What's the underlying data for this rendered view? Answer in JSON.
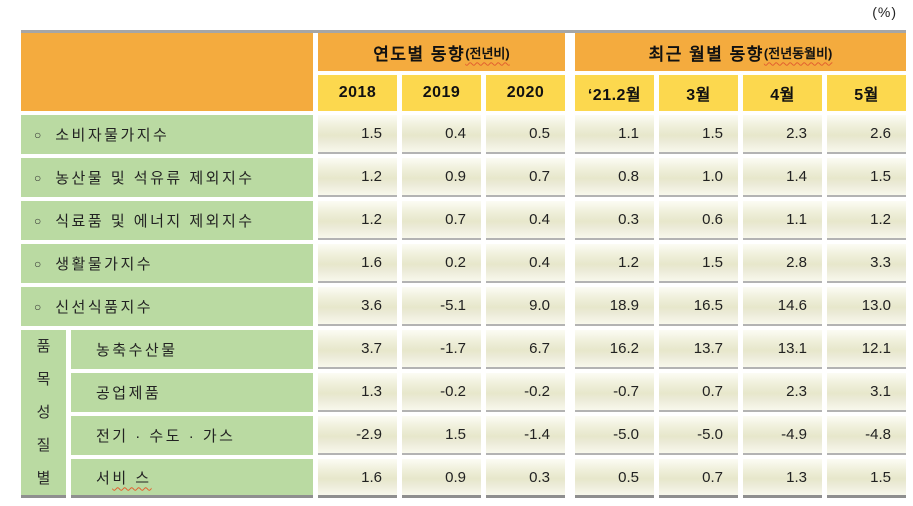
{
  "unit_label": "(%)",
  "marker": "○",
  "colors": {
    "header_orange": "#f4ab3e",
    "header_yellow": "#fcd84e",
    "label_green": "#badaa2",
    "cell_cream": "#e7e7cb",
    "border_gray": "#a6a6a6",
    "underline_red": "#e2602f"
  },
  "header": {
    "group_yearly": {
      "title": "연도별 동향",
      "suffix": "(전년비)"
    },
    "group_monthly": {
      "title": "최근 월별 동향",
      "suffix": "(전년동월비)"
    },
    "columns": [
      "2018",
      "2019",
      "2020",
      "‘21.2월",
      "3월",
      "4월",
      "5월"
    ]
  },
  "main_rows": [
    {
      "label": "소비자물가지수",
      "values": [
        "1.5",
        "0.4",
        "0.5",
        "1.1",
        "1.5",
        "2.3",
        "2.6"
      ]
    },
    {
      "label": "농산물 및 석유류 제외지수",
      "values": [
        "1.2",
        "0.9",
        "0.7",
        "0.8",
        "1.0",
        "1.4",
        "1.5"
      ]
    },
    {
      "label": "식료품 및 에너지 제외지수",
      "values": [
        "1.2",
        "0.7",
        "0.4",
        "0.3",
        "0.6",
        "1.1",
        "1.2"
      ]
    },
    {
      "label": "생활물가지수",
      "values": [
        "1.6",
        "0.2",
        "0.4",
        "1.2",
        "1.5",
        "2.8",
        "3.3"
      ]
    },
    {
      "label": "신선식품지수",
      "values": [
        "3.6",
        "-5.1",
        "9.0",
        "18.9",
        "16.5",
        "14.6",
        "13.0"
      ]
    }
  ],
  "section": {
    "vertical_label": "품목성질별",
    "rows": [
      {
        "label": "농축수산물",
        "values": [
          "3.7",
          "-1.7",
          "6.7",
          "16.2",
          "13.7",
          "13.1",
          "12.1"
        ]
      },
      {
        "label": "공업제품",
        "values": [
          "1.3",
          "-0.2",
          "-0.2",
          "-0.7",
          "0.7",
          "2.3",
          "3.1"
        ]
      },
      {
        "label": "전기 · 수도 · 가스",
        "values": [
          "-2.9",
          "1.5",
          "-1.4",
          "-5.0",
          "-5.0",
          "-4.9",
          "-4.8"
        ]
      },
      {
        "label_prefix": "서 ",
        "label_wavy": "비 스",
        "values": [
          "1.6",
          "0.9",
          "0.3",
          "0.5",
          "0.7",
          "1.3",
          "1.5"
        ]
      }
    ]
  }
}
